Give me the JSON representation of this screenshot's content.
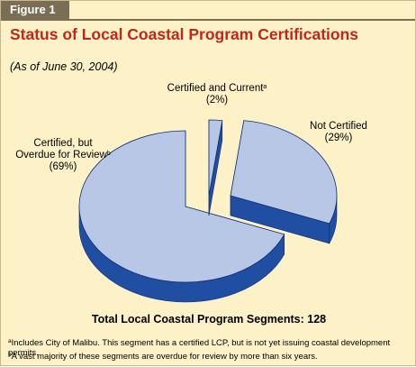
{
  "figure_label": "Figure 1",
  "title": "Status of Local Coastal Program Certifications",
  "subtitle": "(As of June 30, 2004)",
  "total": "Total Local Coastal Program Segments: 128",
  "labels": {
    "current": {
      "line1": "Certified and Current",
      "sup": "a",
      "line2": "(2%)"
    },
    "not": {
      "line1": "Not Certified",
      "line2": "(29%)"
    },
    "overdue": {
      "line1": "Certified, but",
      "line2": "Overdue for Review",
      "sup": "b",
      "line3": "(69%)"
    }
  },
  "footnotes": {
    "a": {
      "mark": "a",
      "text": "Includes City of Malibu. This segment has a certified LCP, but is not yet issuing coastal development permits."
    },
    "b": {
      "mark": "b",
      "text": "A vast majority of these segments are overdue for review by more than six years."
    }
  },
  "colors": {
    "top": "#b8c7e6",
    "side": "#1f4ea3",
    "title": "#c0261c",
    "background": "#fdf1c8"
  },
  "chart_data": {
    "type": "pie",
    "title": "Status of Local Coastal Program Certifications",
    "categories": [
      "Certified and Current",
      "Not Certified",
      "Certified, but Overdue for Review"
    ],
    "values": [
      2,
      29,
      69
    ],
    "unit": "%",
    "total_segments": 128,
    "exploded": [
      "Certified and Current",
      "Not Certified"
    ]
  }
}
